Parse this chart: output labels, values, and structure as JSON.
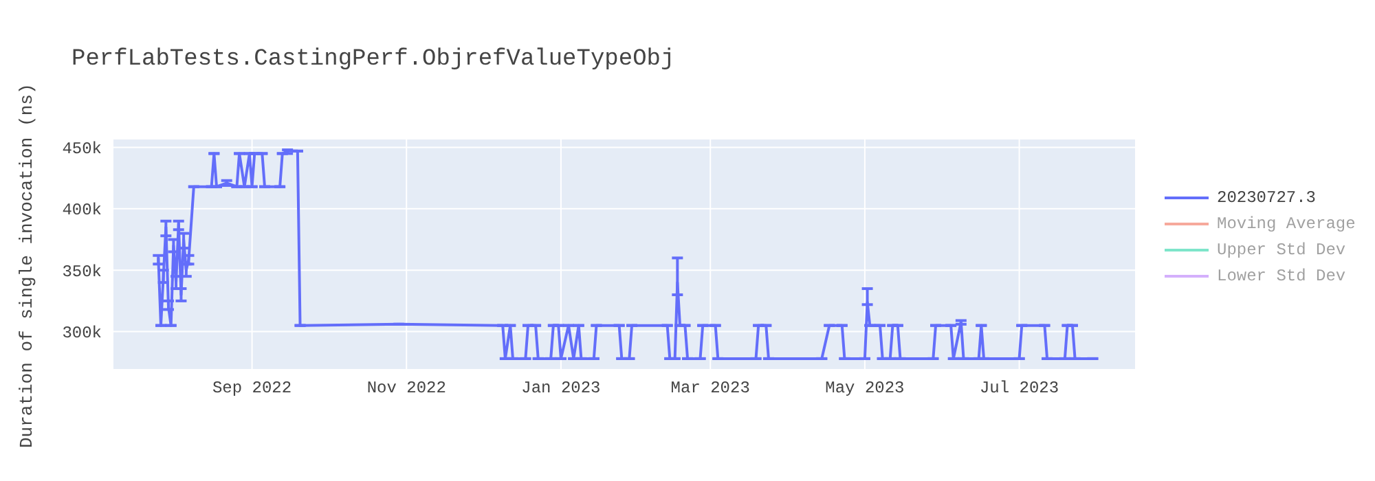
{
  "chart_data": {
    "type": "line",
    "title": "PerfLabTests.CastingPerf.ObjrefValueTypeObj",
    "ylabel": "Duration of single invocation (ns)",
    "x": [
      "2022-07-26",
      "2022-07-27",
      "2022-07-28",
      "2022-07-29",
      "2022-07-30",
      "2022-07-31",
      "2022-08-01",
      "2022-08-02",
      "2022-08-03",
      "2022-08-04",
      "2022-08-05",
      "2022-08-06",
      "2022-08-07",
      "2022-08-09",
      "2022-08-16",
      "2022-08-17",
      "2022-08-18",
      "2022-08-22",
      "2022-08-26",
      "2022-08-27",
      "2022-08-29",
      "2022-08-31",
      "2022-09-01",
      "2022-09-02",
      "2022-09-05",
      "2022-09-06",
      "2022-09-12",
      "2022-09-13",
      "2022-09-15",
      "2022-09-19",
      "2022-09-20",
      "2022-10-29",
      "2022-12-09",
      "2022-12-10",
      "2022-12-12",
      "2022-12-13",
      "2022-12-18",
      "2022-12-19",
      "2022-12-22",
      "2022-12-23",
      "2022-12-28",
      "2022-12-29",
      "2022-12-31",
      "2023-01-01",
      "2023-01-04",
      "2023-01-06",
      "2023-01-08",
      "2023-01-09",
      "2023-01-14",
      "2023-01-15",
      "2023-01-24",
      "2023-01-25",
      "2023-01-28",
      "2023-01-29",
      "2023-02-12",
      "2023-02-13",
      "2023-02-15",
      "2023-02-16",
      "2023-02-17",
      "2023-02-19",
      "2023-02-20",
      "2023-02-25",
      "2023-02-26",
      "2023-03-03",
      "2023-03-04",
      "2023-03-19",
      "2023-03-20",
      "2023-03-23",
      "2023-03-24",
      "2023-04-14",
      "2023-04-17",
      "2023-04-22",
      "2023-04-23",
      "2023-05-01",
      "2023-05-02",
      "2023-05-03",
      "2023-05-07",
      "2023-05-08",
      "2023-05-11",
      "2023-05-12",
      "2023-05-14",
      "2023-05-15",
      "2023-05-28",
      "2023-05-29",
      "2023-06-04",
      "2023-06-05",
      "2023-06-08",
      "2023-06-09",
      "2023-06-15",
      "2023-06-16",
      "2023-06-17",
      "2023-07-01",
      "2023-07-02",
      "2023-07-11",
      "2023-07-12",
      "2023-07-19",
      "2023-07-20",
      "2023-07-22",
      "2023-07-23",
      "2023-07-30"
    ],
    "series": [
      {
        "name": "20230727.3",
        "color": "#636efa",
        "values": [
          360000,
          305000,
          345000,
          385000,
          320000,
          305000,
          370000,
          340000,
          388000,
          330000,
          375000,
          350000,
          359000,
          418000,
          418000,
          445000,
          418000,
          421000,
          418000,
          445000,
          418000,
          445000,
          418000,
          445000,
          445000,
          418000,
          418000,
          445000,
          447000,
          447000,
          305000,
          306000,
          305000,
          278000,
          305000,
          278000,
          278000,
          305000,
          305000,
          278000,
          278000,
          305000,
          305000,
          278000,
          305000,
          278000,
          305000,
          278000,
          278000,
          305000,
          305000,
          278000,
          278000,
          305000,
          305000,
          278000,
          278000,
          340000,
          305000,
          305000,
          278000,
          278000,
          305000,
          305000,
          278000,
          278000,
          305000,
          305000,
          278000,
          278000,
          305000,
          305000,
          278000,
          278000,
          324000,
          305000,
          305000,
          278000,
          278000,
          305000,
          305000,
          278000,
          278000,
          305000,
          305000,
          278000,
          308000,
          278000,
          278000,
          305000,
          278000,
          278000,
          305000,
          305000,
          278000,
          278000,
          305000,
          305000,
          278000,
          278000
        ],
        "errors": [
          [
            355000,
            362000
          ],
          null,
          [
            340000,
            350000
          ],
          [
            378000,
            390000
          ],
          [
            318000,
            325000
          ],
          null,
          [
            365000,
            375000
          ],
          [
            335000,
            345000
          ],
          [
            383000,
            390000
          ],
          [
            325000,
            335000
          ],
          [
            368000,
            380000
          ],
          [
            345000,
            355000
          ],
          [
            355000,
            362000
          ],
          null,
          null,
          null,
          null,
          [
            419000,
            423000
          ],
          null,
          null,
          null,
          null,
          null,
          null,
          null,
          null,
          null,
          null,
          [
            445000,
            448000
          ],
          null,
          null,
          null,
          null,
          null,
          null,
          null,
          null,
          null,
          null,
          null,
          null,
          null,
          null,
          null,
          null,
          null,
          null,
          null,
          null,
          null,
          null,
          null,
          null,
          null,
          null,
          null,
          null,
          [
            330000,
            360000
          ],
          null,
          null,
          null,
          null,
          null,
          null,
          null,
          null,
          null,
          null,
          null,
          null,
          null,
          null,
          null,
          null,
          [
            322000,
            335000
          ],
          null,
          null,
          null,
          null,
          null,
          null,
          null,
          null,
          null,
          null,
          null,
          [
            306000,
            309000
          ],
          null,
          null,
          null,
          null,
          null,
          null,
          null,
          null,
          null,
          null,
          null,
          null,
          null
        ]
      },
      {
        "name": "Moving Average",
        "color": "#ef553b",
        "values": [
          null,
          null,
          null,
          null,
          null,
          null,
          null,
          null,
          null,
          null,
          null,
          null,
          null,
          null,
          null,
          null,
          null,
          null,
          null,
          null,
          null,
          null,
          null,
          null,
          null,
          null,
          null,
          null,
          null,
          null,
          null,
          null,
          null,
          null,
          null,
          null,
          null,
          null,
          null,
          null,
          null,
          null,
          null,
          null,
          null,
          null,
          null,
          null,
          null,
          null,
          null,
          null,
          null,
          null,
          null,
          null,
          null,
          null,
          null,
          null,
          null,
          null,
          null,
          null,
          null,
          null,
          null,
          null,
          null,
          null,
          null,
          null,
          null,
          null,
          null,
          null,
          null,
          null,
          null,
          null,
          null,
          null,
          null,
          null,
          null,
          null,
          null,
          null,
          null,
          null,
          null,
          null,
          null,
          null,
          null,
          null,
          null,
          null,
          null,
          null
        ]
      },
      {
        "name": "Upper Std Dev",
        "color": "#00cc96",
        "values": [
          null,
          null,
          null,
          null,
          null,
          null,
          null,
          null,
          null,
          null,
          null,
          null,
          null,
          null,
          null,
          null,
          null,
          null,
          null,
          null,
          null,
          null,
          null,
          null,
          null,
          null,
          null,
          null,
          null,
          null,
          null,
          null,
          null,
          null,
          null,
          null,
          null,
          null,
          null,
          null,
          null,
          null,
          null,
          null,
          null,
          null,
          null,
          null,
          null,
          null,
          null,
          null,
          null,
          null,
          null,
          null,
          null,
          null,
          null,
          null,
          null,
          null,
          null,
          null,
          null,
          null,
          null,
          null,
          null,
          null,
          null,
          null,
          null,
          null,
          null,
          null,
          null,
          null,
          null,
          null,
          null,
          null,
          null,
          null,
          null,
          null,
          null,
          null,
          null,
          null,
          null,
          null,
          null,
          null,
          null,
          null,
          null,
          null,
          null,
          null
        ]
      },
      {
        "name": "Lower Std Dev",
        "color": "#ab63fa",
        "values": [
          null,
          null,
          null,
          null,
          null,
          null,
          null,
          null,
          null,
          null,
          null,
          null,
          null,
          null,
          null,
          null,
          null,
          null,
          null,
          null,
          null,
          null,
          null,
          null,
          null,
          null,
          null,
          null,
          null,
          null,
          null,
          null,
          null,
          null,
          null,
          null,
          null,
          null,
          null,
          null,
          null,
          null,
          null,
          null,
          null,
          null,
          null,
          null,
          null,
          null,
          null,
          null,
          null,
          null,
          null,
          null,
          null,
          null,
          null,
          null,
          null,
          null,
          null,
          null,
          null,
          null,
          null,
          null,
          null,
          null,
          null,
          null,
          null,
          null,
          null,
          null,
          null,
          null,
          null,
          null,
          null,
          null,
          null,
          null,
          null,
          null,
          null,
          null,
          null,
          null,
          null,
          null,
          null,
          null,
          null,
          null,
          null,
          null,
          null,
          null
        ]
      }
    ],
    "xlim": [
      "2022-07-08",
      "2023-08-16"
    ],
    "xticks": [
      {
        "value": "2022-09-01",
        "label": "Sep 2022"
      },
      {
        "value": "2022-11-01",
        "label": "Nov 2022"
      },
      {
        "value": "2023-01-01",
        "label": "Jan 2023"
      },
      {
        "value": "2023-03-01",
        "label": "Mar 2023"
      },
      {
        "value": "2023-05-01",
        "label": "May 2023"
      },
      {
        "value": "2023-07-01",
        "label": "Jul 2023"
      }
    ],
    "ylim": [
      269000,
      457000
    ],
    "yticks": [
      {
        "value": 300000,
        "label": "300k"
      },
      {
        "value": 350000,
        "label": "350k"
      },
      {
        "value": 400000,
        "label": "400k"
      },
      {
        "value": 450000,
        "label": "450k"
      }
    ],
    "grid": true,
    "legend": "top right",
    "marker": "none",
    "line_style": "solid"
  }
}
